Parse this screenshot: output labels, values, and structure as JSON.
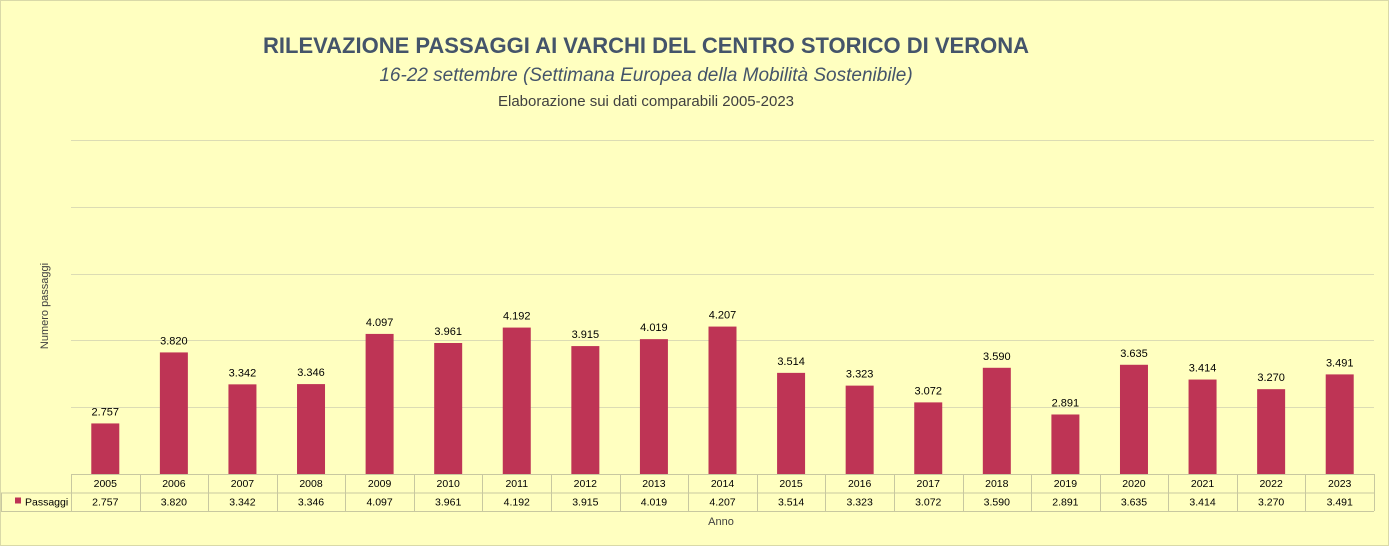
{
  "chart_data": {
    "type": "bar",
    "title": "RILEVAZIONE PASSAGGI AI VARCHI DEL CENTRO STORICO DI VERONA",
    "subtitle": "16-22 settembre  (Settimana Europea della Mobilità Sostenibile)",
    "subtitle2": "Elaborazione sui dati comparabili 2005-2023",
    "xlabel": "Anno",
    "ylabel": "Numero passaggi",
    "categories": [
      "2005",
      "2006",
      "2007",
      "2008",
      "2009",
      "2010",
      "2011",
      "2012",
      "2013",
      "2014",
      "2015",
      "2016",
      "2017",
      "2018",
      "2019",
      "2020",
      "2021",
      "2022",
      "2023"
    ],
    "series": [
      {
        "name": "Passaggi",
        "values": [
          2757,
          3820,
          3342,
          3346,
          4097,
          3961,
          4192,
          3915,
          4019,
          4207,
          3514,
          3323,
          3072,
          3590,
          2891,
          3635,
          3414,
          3270,
          3491
        ],
        "labels": [
          "2.757",
          "3.820",
          "3.342",
          "3.346",
          "4.097",
          "3.961",
          "4.192",
          "3.915",
          "4.019",
          "4.207",
          "3.514",
          "3.323",
          "3.072",
          "3.590",
          "2.891",
          "3.635",
          "3.414",
          "3.270",
          "3.491"
        ],
        "color": "#be3455"
      }
    ],
    "ylim": [
      2000,
      7000
    ],
    "grid": true,
    "legend": "data table below axis"
  }
}
